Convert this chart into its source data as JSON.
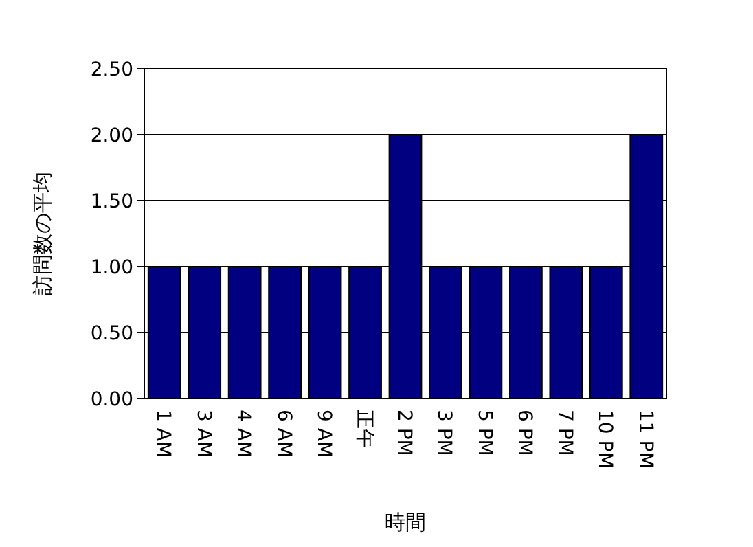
{
  "chart_data": {
    "type": "bar",
    "xlabel": "時間",
    "ylabel": "訪問数の平均",
    "categories": [
      "1 AM",
      "3 AM",
      "4 AM",
      "6 AM",
      "9 AM",
      "正午",
      "2 PM",
      "3 PM",
      "5 PM",
      "6 PM",
      "7 PM",
      "10 PM",
      "11 PM"
    ],
    "series": [
      {
        "color": "#000080",
        "values": [
          1,
          1,
          1,
          1,
          1,
          1,
          2,
          1,
          1,
          1,
          1,
          1,
          2
        ]
      }
    ],
    "ylim": [
      0,
      2.5
    ],
    "yticks": [
      {
        "value": 0,
        "label": "0.00"
      },
      {
        "value": 0.5,
        "label": "0.50"
      },
      {
        "value": 1,
        "label": "1.00"
      },
      {
        "value": 1.5,
        "label": "1.50"
      },
      {
        "value": 2,
        "label": "2.00"
      },
      {
        "value": 2.5,
        "label": "2.50"
      }
    ],
    "grid": "y"
  }
}
